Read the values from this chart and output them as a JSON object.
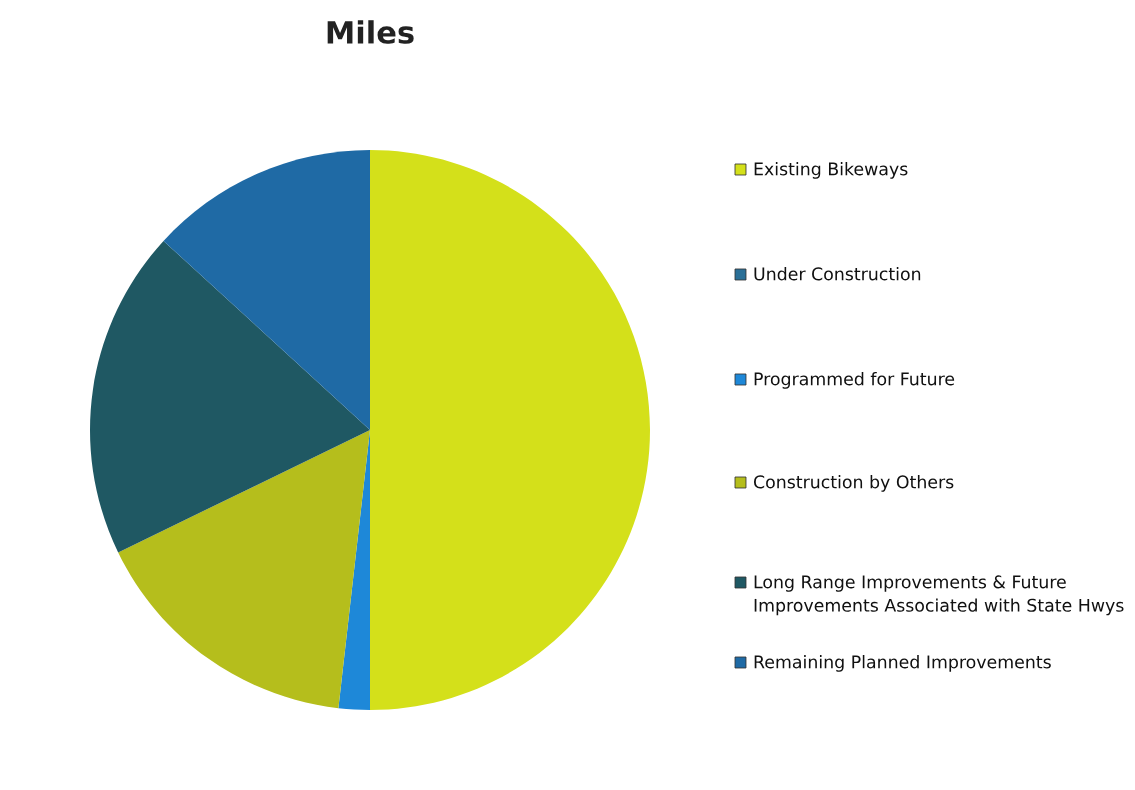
{
  "chart_data": {
    "type": "pie",
    "title": "Miles",
    "categories": [
      "Existing Bikeways",
      "Under Construction",
      "Programmed for Future",
      "Construction by Others",
      "Long Range Improvements & Future Improvements Associated with State Hwys",
      "Remaining Planned Improvements"
    ],
    "values": [
      50,
      0,
      1.8,
      16,
      19,
      13.2
    ],
    "colors": [
      "#d4e01a",
      "#2a6f97",
      "#1e88d8",
      "#b5be1c",
      "#1f5863",
      "#1f6aa5"
    ],
    "legend": "right"
  }
}
